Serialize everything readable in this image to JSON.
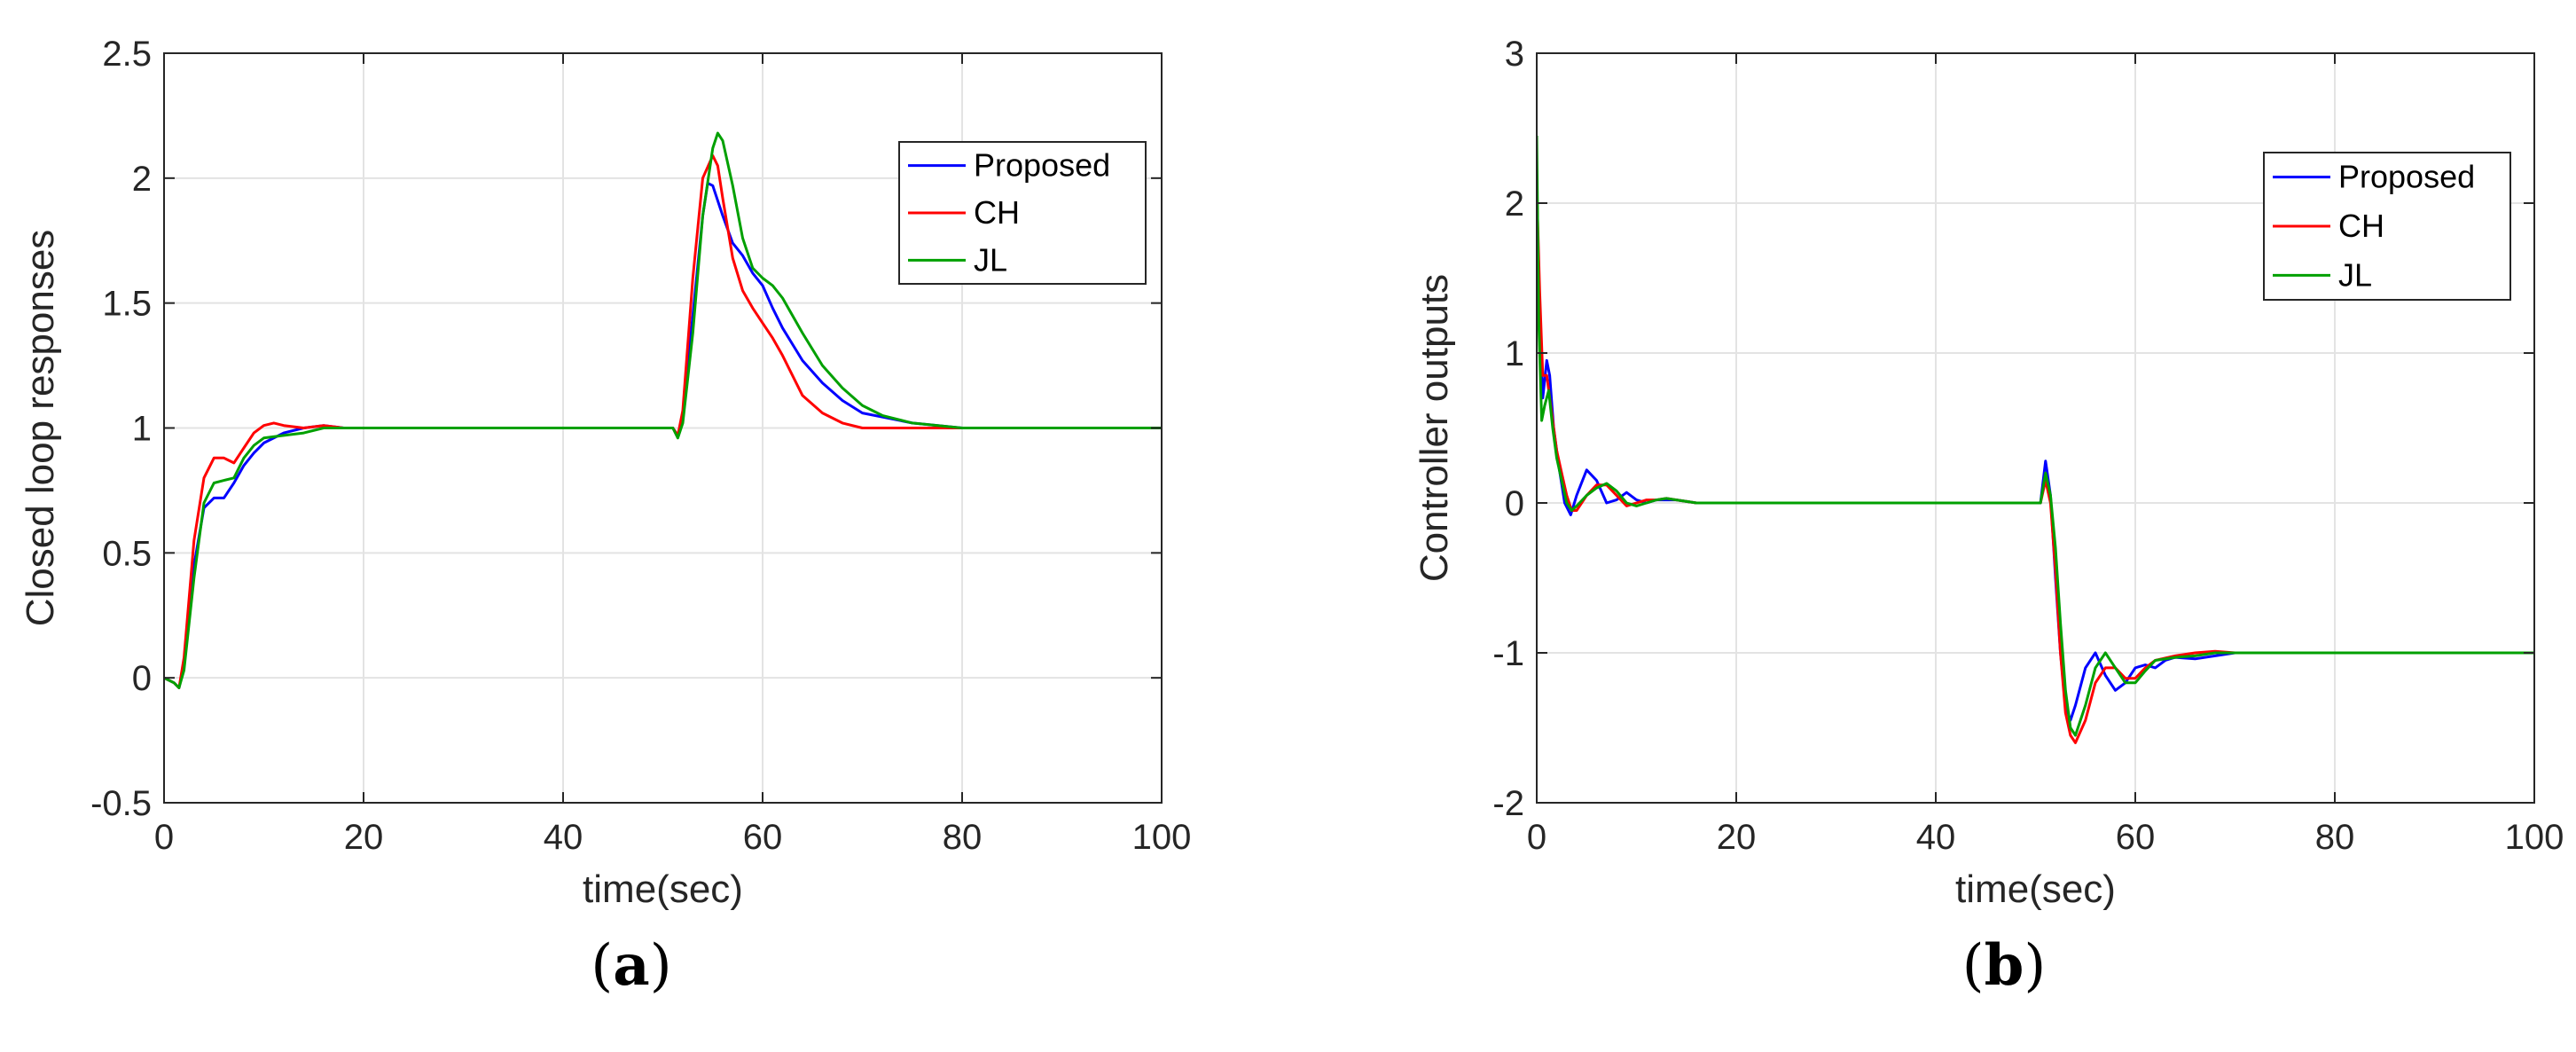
{
  "chart_data": [
    {
      "type": "line",
      "caption_letter": "a",
      "xlabel": "time(sec)",
      "ylabel": "Closed loop responses",
      "xlim": [
        0,
        100
      ],
      "ylim": [
        -0.5,
        2.5
      ],
      "xticks": [
        0,
        20,
        40,
        60,
        80,
        100
      ],
      "xtick_labels": [
        "0",
        "20",
        "40",
        "60",
        "80",
        "100"
      ],
      "yticks": [
        -0.5,
        0,
        0.5,
        1,
        1.5,
        2,
        2.5
      ],
      "ytick_labels": [
        "-0.5",
        "0",
        "0.5",
        "1",
        "1.5",
        "2",
        "2.5"
      ],
      "grid": true,
      "legend_position": "top-right",
      "legend": [
        "Proposed",
        "CH",
        "JL"
      ],
      "series": [
        {
          "name": "Proposed",
          "color": "#0000ff",
          "x": [
            0,
            1,
            1.5,
            2,
            3,
            4,
            5,
            6,
            7,
            8,
            9,
            10,
            12,
            14,
            16,
            18,
            20,
            25,
            30,
            40,
            50,
            51,
            51.5,
            52,
            53,
            54,
            54.5,
            55,
            56,
            57,
            58,
            59,
            60,
            61,
            62,
            64,
            66,
            68,
            70,
            75,
            80,
            90,
            100
          ],
          "y": [
            0,
            -0.02,
            -0.04,
            0.05,
            0.45,
            0.68,
            0.72,
            0.72,
            0.78,
            0.85,
            0.9,
            0.94,
            0.98,
            1.0,
            1.01,
            1.0,
            1.0,
            1.0,
            1.0,
            1.0,
            1.0,
            1.0,
            0.97,
            1.05,
            1.45,
            1.85,
            1.98,
            1.97,
            1.85,
            1.74,
            1.69,
            1.62,
            1.57,
            1.48,
            1.4,
            1.27,
            1.18,
            1.11,
            1.06,
            1.02,
            1.0,
            1.0,
            1.0
          ]
        },
        {
          "name": "CH",
          "color": "#ff0000",
          "x": [
            0,
            1,
            1.5,
            2,
            3,
            4,
            5,
            6,
            7,
            8,
            9,
            10,
            11,
            12,
            14,
            16,
            18,
            20,
            25,
            30,
            40,
            50,
            51,
            51.5,
            52,
            53,
            54,
            55,
            55.5,
            56,
            57,
            58,
            59,
            60,
            61,
            62,
            64,
            66,
            68,
            70,
            75,
            80,
            90,
            100
          ],
          "y": [
            0,
            -0.02,
            -0.04,
            0.08,
            0.55,
            0.8,
            0.88,
            0.88,
            0.86,
            0.92,
            0.98,
            1.01,
            1.02,
            1.01,
            1.0,
            1.01,
            1.0,
            1.0,
            1.0,
            1.0,
            1.0,
            1.0,
            1.0,
            0.97,
            1.07,
            1.6,
            2.0,
            2.09,
            2.05,
            1.92,
            1.68,
            1.55,
            1.48,
            1.42,
            1.36,
            1.29,
            1.13,
            1.06,
            1.02,
            1.0,
            1.0,
            1.0,
            1.0,
            1.0
          ]
        },
        {
          "name": "JL",
          "color": "#00a000",
          "x": [
            0,
            1,
            1.5,
            2,
            3,
            4,
            5,
            6,
            7,
            8,
            9,
            10,
            12,
            14,
            16,
            18,
            20,
            25,
            30,
            40,
            50,
            51,
            51.5,
            52,
            53,
            54,
            55,
            55.5,
            56,
            57,
            58,
            59,
            60,
            61,
            62,
            64,
            66,
            68,
            70,
            72,
            75,
            80,
            90,
            100
          ],
          "y": [
            0,
            -0.02,
            -0.04,
            0.03,
            0.4,
            0.7,
            0.78,
            0.79,
            0.8,
            0.88,
            0.93,
            0.96,
            0.97,
            0.98,
            1.0,
            1.0,
            1.0,
            1.0,
            1.0,
            1.0,
            1.0,
            1.0,
            0.96,
            1.02,
            1.38,
            1.85,
            2.12,
            2.18,
            2.15,
            1.97,
            1.76,
            1.64,
            1.6,
            1.57,
            1.52,
            1.38,
            1.25,
            1.16,
            1.09,
            1.05,
            1.02,
            1.0,
            1.0,
            1.0
          ]
        }
      ]
    },
    {
      "type": "line",
      "caption_letter": "b",
      "xlabel": "time(sec)",
      "ylabel": "Controller outputs",
      "xlim": [
        0,
        100
      ],
      "ylim": [
        -2,
        3
      ],
      "xticks": [
        0,
        20,
        40,
        60,
        80,
        100
      ],
      "xtick_labels": [
        "0",
        "20",
        "40",
        "60",
        "80",
        "100"
      ],
      "yticks": [
        -2,
        -1,
        0,
        1,
        2,
        3
      ],
      "ytick_labels": [
        "-2",
        "-1",
        "0",
        "1",
        "2",
        "3"
      ],
      "grid": true,
      "legend_position": "top-right",
      "legend": [
        "Proposed",
        "CH",
        "JL"
      ],
      "series": [
        {
          "name": "Proposed",
          "color": "#0000ff",
          "x": [
            0,
            0.3,
            0.6,
            1,
            1.3,
            1.7,
            2.2,
            2.8,
            3.4,
            4,
            5,
            6,
            7,
            8,
            9,
            10,
            11,
            12,
            14,
            16,
            18,
            20,
            30,
            40,
            50,
            50.5,
            51,
            51.5,
            52,
            52.5,
            53,
            53.5,
            54,
            55,
            56,
            57,
            58,
            59,
            60,
            61,
            62,
            63,
            64,
            66,
            68,
            70,
            75,
            80,
            90,
            100
          ],
          "y": [
            2.0,
            1.3,
            0.7,
            0.95,
            0.85,
            0.5,
            0.25,
            0.0,
            -0.08,
            0.05,
            0.22,
            0.15,
            0.0,
            0.02,
            0.07,
            0.02,
            0.0,
            0.02,
            0.02,
            0.0,
            0.0,
            0.0,
            0.0,
            0.0,
            0.0,
            0.0,
            0.28,
            0.05,
            -0.5,
            -1.0,
            -1.35,
            -1.45,
            -1.35,
            -1.1,
            -1.0,
            -1.15,
            -1.25,
            -1.2,
            -1.1,
            -1.08,
            -1.1,
            -1.05,
            -1.03,
            -1.04,
            -1.02,
            -1.0,
            -1.0,
            -1.0,
            -1.0,
            -1.0
          ]
        },
        {
          "name": "CH",
          "color": "#ff0000",
          "x": [
            0,
            0.3,
            0.6,
            1,
            1.5,
            2,
            2.5,
            3,
            3.5,
            4,
            5,
            6,
            7,
            8,
            9,
            10,
            11,
            12,
            13,
            14,
            16,
            18,
            20,
            30,
            40,
            50,
            50.5,
            51,
            51.5,
            52,
            52.5,
            53,
            53.5,
            54,
            55,
            56,
            57,
            58,
            59,
            60,
            61,
            62,
            64,
            66,
            68,
            70,
            75,
            80,
            90,
            100
          ],
          "y": [
            2.1,
            1.4,
            0.85,
            0.85,
            0.6,
            0.35,
            0.2,
            0.05,
            -0.05,
            -0.05,
            0.05,
            0.12,
            0.12,
            0.05,
            -0.02,
            0.0,
            0.02,
            0.02,
            0.03,
            0.02,
            0.0,
            0.0,
            0.0,
            0.0,
            0.0,
            0.0,
            0.0,
            0.15,
            0.0,
            -0.45,
            -1.0,
            -1.4,
            -1.55,
            -1.6,
            -1.45,
            -1.2,
            -1.1,
            -1.1,
            -1.17,
            -1.17,
            -1.1,
            -1.05,
            -1.02,
            -1.0,
            -0.99,
            -1.0,
            -1.0,
            -1.0,
            -1.0,
            -1.0
          ]
        },
        {
          "name": "JL",
          "color": "#00a000",
          "x": [
            0,
            0.2,
            0.5,
            0.8,
            1.2,
            1.6,
            2,
            2.5,
            3,
            3.5,
            4,
            5,
            6,
            7,
            8,
            9,
            10,
            11,
            12,
            13,
            14,
            16,
            18,
            20,
            30,
            40,
            50,
            50.5,
            51,
            51.5,
            52,
            52.5,
            53,
            53.5,
            54,
            55,
            56,
            57,
            58,
            59,
            60,
            61,
            62,
            64,
            66,
            68,
            70,
            75,
            80,
            90,
            100
          ],
          "y": [
            2.45,
            1.2,
            0.55,
            0.65,
            0.75,
            0.5,
            0.3,
            0.15,
            0.0,
            -0.05,
            -0.02,
            0.05,
            0.1,
            0.13,
            0.08,
            0.0,
            -0.02,
            0.0,
            0.02,
            0.03,
            0.02,
            0.0,
            0.0,
            0.0,
            0.0,
            0.0,
            0.0,
            0.0,
            0.2,
            0.05,
            -0.3,
            -0.8,
            -1.25,
            -1.5,
            -1.55,
            -1.35,
            -1.1,
            -1.0,
            -1.1,
            -1.2,
            -1.2,
            -1.12,
            -1.05,
            -1.03,
            -1.02,
            -1.0,
            -1.0,
            -1.0,
            -1.0,
            -1.0,
            -1.0
          ]
        }
      ]
    }
  ]
}
